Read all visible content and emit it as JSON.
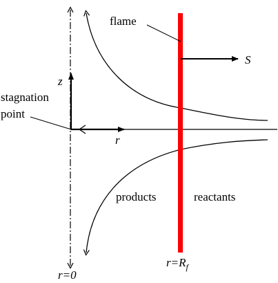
{
  "labels": {
    "flame": "flame",
    "speed": "S",
    "z_axis": "z",
    "stagnation_line1": "stagnation",
    "stagnation_line2": "point",
    "r_axis": "r",
    "products": "products",
    "reactants": "reactants",
    "r_zero": "r=0",
    "r_flame_main": "r=R",
    "r_flame_sub": "f"
  },
  "colors": {
    "flame": "#ff0000",
    "ink": "#000000"
  }
}
